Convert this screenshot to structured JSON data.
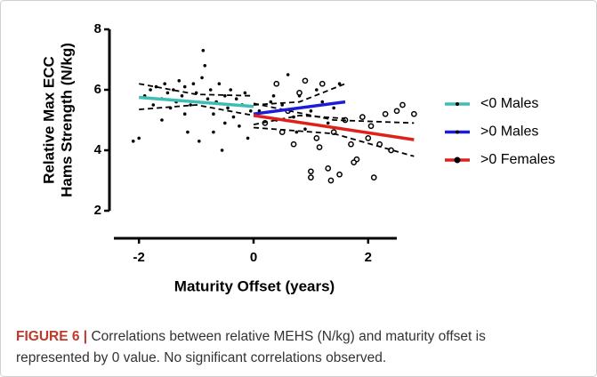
{
  "chart_data": {
    "type": "scatter",
    "x_label": "Maturity Offset (years)",
    "y_label": [
      "Relative Max ECC",
      "Hams Strength (N/kg)"
    ],
    "xlim": [
      -2.5,
      2.5
    ],
    "xticks": [
      -2,
      0,
      2
    ],
    "ylim": [
      2,
      8
    ],
    "yticks": [
      2,
      4,
      6,
      8
    ],
    "grid": false,
    "legend": "right",
    "series": [
      {
        "name": "<0 Males",
        "color": "#3dbdb3",
        "marker": "filled",
        "x": [
          -2.1,
          -2,
          -1.9,
          -1.8,
          -1.75,
          -1.7,
          -1.6,
          -1.55,
          -1.5,
          -1.45,
          -1.4,
          -1.35,
          -1.3,
          -1.25,
          -1.2,
          -1.15,
          -1.1,
          -1.05,
          -1.0,
          -0.95,
          -0.9,
          -0.88,
          -0.85,
          -0.8,
          -0.75,
          -0.7,
          -0.65,
          -0.6,
          -0.55,
          -0.5,
          -0.45,
          -0.4,
          -0.35,
          -0.3,
          -0.25,
          -0.2,
          -0.15,
          -0.1,
          -0.05,
          -1.6,
          -1.2,
          -0.7,
          -0.5
        ],
        "values": [
          4.3,
          4.4,
          5.8,
          6.0,
          5.5,
          6.1,
          5.7,
          6.2,
          5.9,
          5.4,
          6.0,
          5.6,
          6.3,
          5.8,
          6.1,
          4.6,
          5.5,
          6.2,
          5.9,
          4.3,
          6.4,
          7.3,
          6.8,
          5.7,
          6.0,
          5.2,
          5.6,
          6.2,
          4.0,
          5.8,
          5.4,
          6.0,
          5.1,
          5.7,
          4.8,
          5.5,
          5.9,
          4.4,
          5.3,
          5.0,
          5.2,
          4.6,
          4.9
        ],
        "fit_x": [
          -2,
          0
        ],
        "fit": [
          5.75,
          5.45
        ],
        "band_x": [
          -2,
          -1,
          0
        ],
        "band_upper": [
          6.2,
          5.85,
          5.8
        ],
        "band_lower": [
          5.35,
          5.5,
          5.15
        ]
      },
      {
        "name": ">0 Males",
        "color": "#1c1cd8",
        "marker": "filled",
        "x": [
          0.1,
          0.2,
          0.3,
          0.4,
          0.5,
          0.6,
          0.7,
          0.8,
          0.9,
          1.0,
          1.1,
          1.2,
          1.3,
          1.4,
          1.5,
          0.35,
          0.75
        ],
        "values": [
          5.3,
          4.9,
          5.6,
          5.0,
          5.5,
          6.5,
          5.1,
          5.8,
          4.7,
          5.3,
          6.0,
          5.6,
          4.9,
          5.4,
          6.2,
          5.8,
          4.6
        ],
        "fit_x": [
          0,
          1.6
        ],
        "fit": [
          5.2,
          5.6
        ],
        "band_x": [
          0,
          0.8,
          1.6
        ],
        "band_upper": [
          5.5,
          5.6,
          6.2
        ],
        "band_lower": [
          4.85,
          5.15,
          5.05
        ]
      },
      {
        "name": ">0 Females",
        "color": "#e0201b",
        "marker": "open",
        "x": [
          0.2,
          0.4,
          0.5,
          0.6,
          0.7,
          0.8,
          0.9,
          1.0,
          1.0,
          1.1,
          1.2,
          1.3,
          1.35,
          1.4,
          1.5,
          1.6,
          1.7,
          1.8,
          1.9,
          2.0,
          2.1,
          2.2,
          2.3,
          2.4,
          2.5,
          2.6,
          2.8,
          1.15,
          1.75,
          2.05
        ],
        "values": [
          4.9,
          6.2,
          4.6,
          5.3,
          4.2,
          5.9,
          6.3,
          3.3,
          3.1,
          4.4,
          6.2,
          3.4,
          3.0,
          4.6,
          3.2,
          5.0,
          4.2,
          3.7,
          5.1,
          4.4,
          3.1,
          4.2,
          5.2,
          4.0,
          5.3,
          5.5,
          5.2,
          4.1,
          3.6,
          4.8
        ],
        "fit_x": [
          0,
          2.8
        ],
        "fit": [
          5.15,
          4.35
        ],
        "band_x": [
          0,
          1.4,
          2.8
        ],
        "band_upper": [
          5.55,
          5.0,
          4.9
        ],
        "band_lower": [
          4.75,
          4.55,
          3.8
        ]
      }
    ]
  },
  "caption": {
    "label": "FIGURE 6 |",
    "lines": [
      "Correlations between relative MEHS (N/kg) and maturity offset is",
      "represented by 0 value. No significant correlations observed."
    ]
  }
}
